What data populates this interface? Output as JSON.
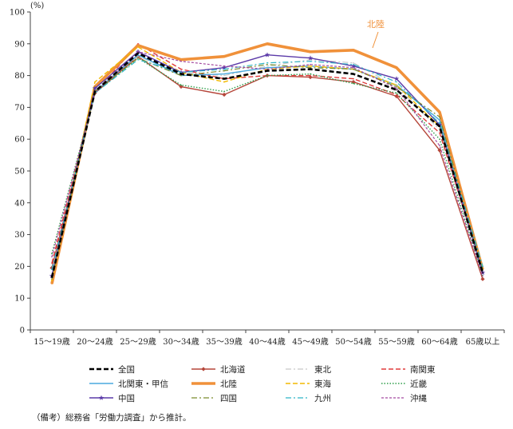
{
  "chart_data": {
    "type": "line",
    "ylabel": "(%)",
    "ylim": [
      0,
      100
    ],
    "yticks": [
      0,
      10,
      20,
      30,
      40,
      50,
      60,
      70,
      80,
      90,
      100
    ],
    "categories": [
      "15～19歳",
      "20～24歳",
      "25～29歳",
      "30～34歳",
      "35～39歳",
      "40～44歳",
      "45～49歳",
      "50～54歳",
      "55～59歳",
      "60～64歳",
      "65歳以上"
    ],
    "annotation": "北陸",
    "legend_placement": "bottom",
    "grid": false,
    "series": [
      {
        "name": "全国",
        "color": "#000000",
        "style": "dash-bold",
        "marker": "none",
        "values": [
          16.5,
          75,
          87,
          80.5,
          79,
          81.5,
          82,
          80.5,
          75.5,
          64,
          18
        ]
      },
      {
        "name": "北海道",
        "color": "#b5463a",
        "style": "solid",
        "marker": "diamond",
        "values": [
          19.5,
          74.5,
          86,
          76.5,
          74,
          80,
          79.5,
          78,
          73.5,
          56.5,
          16
        ]
      },
      {
        "name": "東北",
        "color": "#c8c8c8",
        "style": "dashdot",
        "marker": "none",
        "values": [
          17,
          76,
          86,
          81,
          80,
          83,
          85,
          84,
          76.5,
          63,
          18
        ]
      },
      {
        "name": "南関東",
        "color": "#e03b3b",
        "style": "dash",
        "marker": "none",
        "values": [
          21,
          74.5,
          90,
          82,
          79,
          80,
          80,
          79,
          74,
          62,
          19
        ]
      },
      {
        "name": "北関東・甲信",
        "color": "#4aa9dd",
        "style": "solid",
        "marker": "none",
        "values": [
          17,
          75,
          86.5,
          80,
          80.5,
          82.5,
          83,
          82,
          77,
          66,
          20
        ]
      },
      {
        "name": "北陸",
        "color": "#f0913a",
        "style": "solid-bold",
        "marker": "none",
        "values": [
          14.5,
          76.5,
          89.5,
          85,
          86,
          90,
          87.5,
          88,
          82.5,
          68.5,
          19
        ]
      },
      {
        "name": "東海",
        "color": "#f2b900",
        "style": "dash",
        "marker": "none",
        "values": [
          15.5,
          78,
          89,
          81,
          78,
          82,
          83,
          82,
          77,
          64,
          19
        ]
      },
      {
        "name": "近畿",
        "color": "#2e9e4a",
        "style": "dot",
        "marker": "none",
        "values": [
          24,
          74.5,
          85.5,
          77,
          75,
          80,
          80.5,
          77.5,
          74.5,
          60,
          17
        ]
      },
      {
        "name": "中国",
        "color": "#5b3aa8",
        "style": "solid",
        "marker": "star",
        "values": [
          17,
          76,
          87.5,
          81,
          82.5,
          86.5,
          85.5,
          83,
          79,
          64.5,
          18
        ]
      },
      {
        "name": "四国",
        "color": "#7a8c2e",
        "style": "dashdot",
        "marker": "none",
        "values": [
          16,
          75,
          85.5,
          80,
          81.5,
          83.5,
          82.5,
          82,
          76.5,
          67,
          19
        ]
      },
      {
        "name": "九州",
        "color": "#2fb4c6",
        "style": "dashdot",
        "marker": "none",
        "values": [
          19,
          74.5,
          85,
          81,
          82,
          84,
          84.5,
          83.5,
          78,
          65,
          20
        ]
      },
      {
        "name": "沖縄",
        "color": "#a54aa0",
        "style": "dash-short",
        "marker": "none",
        "values": [
          23,
          74.5,
          87.5,
          84.5,
          83,
          82,
          83.5,
          82.5,
          76,
          58,
          17
        ]
      }
    ]
  },
  "note": "（備考）総務省「労働力調査」から推計。"
}
